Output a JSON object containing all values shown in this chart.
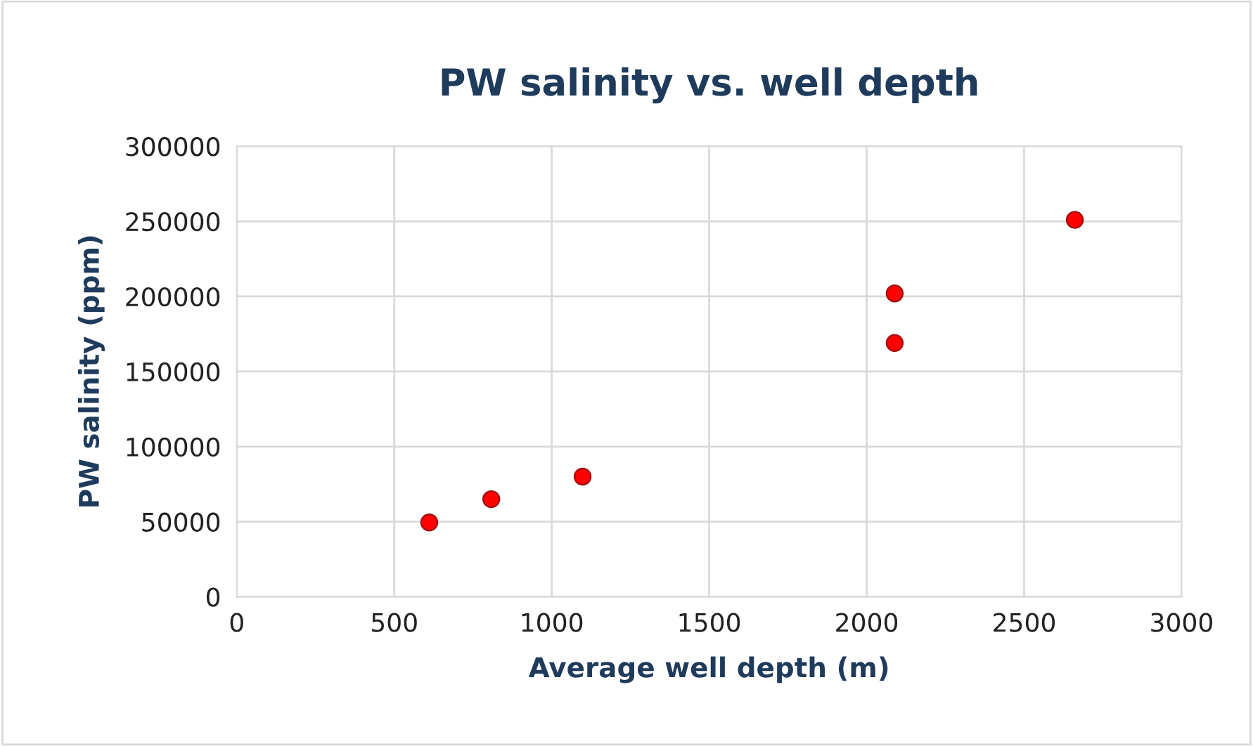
{
  "chart_data": {
    "type": "scatter",
    "title": "PW salinity vs. well depth",
    "xlabel": "Average well depth (m)",
    "ylabel": "PW salinity (ppm)",
    "x": [
      611,
      808,
      1098,
      2089,
      2089,
      2661
    ],
    "series": [
      {
        "color": "#ff0000",
        "values": [
          49500,
          65000,
          80000,
          202000,
          169000,
          251000
        ]
      }
    ],
    "xlim": [
      0,
      3000
    ],
    "xticks": [
      0,
      500,
      1000,
      1500,
      2000,
      2500,
      3000
    ],
    "ylim": [
      0,
      300000
    ],
    "yticks": [
      0,
      50000,
      100000,
      150000,
      200000,
      250000,
      300000
    ],
    "grid": true,
    "marker": "circle",
    "legend": false
  }
}
